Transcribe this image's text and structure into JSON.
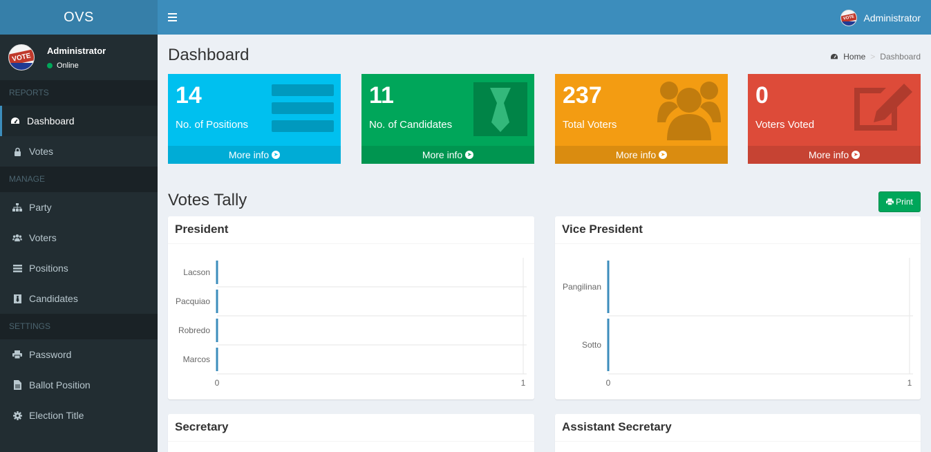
{
  "sidebar": {
    "brand": "OVS",
    "user": {
      "name": "Administrator",
      "status": "Online"
    },
    "sections": [
      {
        "header": "REPORTS",
        "items": [
          {
            "label": "Dashboard",
            "icon": "dashboard-icon",
            "active": true
          },
          {
            "label": "Votes",
            "icon": "lock-icon"
          }
        ]
      },
      {
        "header": "MANAGE",
        "items": [
          {
            "label": "Party",
            "icon": "sitemap-icon"
          },
          {
            "label": "Voters",
            "icon": "users-icon"
          },
          {
            "label": "Positions",
            "icon": "list-icon"
          },
          {
            "label": "Candidates",
            "icon": "candidate-icon"
          }
        ]
      },
      {
        "header": "SETTINGS",
        "items": [
          {
            "label": "Password",
            "icon": "print-icon"
          },
          {
            "label": "Ballot Position",
            "icon": "file-icon"
          },
          {
            "label": "Election Title",
            "icon": "gear-icon"
          }
        ]
      }
    ]
  },
  "topbar": {
    "user_name": "Administrator"
  },
  "page": {
    "title": "Dashboard",
    "breadcrumb": {
      "home": "Home",
      "current": "Dashboard"
    }
  },
  "stats": [
    {
      "value": "14",
      "label": "No. of Positions",
      "more": "More info",
      "color": "#00c0ef"
    },
    {
      "value": "11",
      "label": "No. of Candidates",
      "more": "More info",
      "color": "#00a65a"
    },
    {
      "value": "237",
      "label": "Total Voters",
      "more": "More info",
      "color": "#f39c12"
    },
    {
      "value": "0",
      "label": "Voters Voted",
      "more": "More info",
      "color": "#dd4b39"
    }
  ],
  "tally": {
    "title": "Votes Tally",
    "print_label": "Print",
    "panels": [
      {
        "title": "President"
      },
      {
        "title": "Vice President"
      },
      {
        "title": "Secretary"
      },
      {
        "title": "Assistant Secretary"
      }
    ]
  },
  "chart_data": [
    {
      "type": "bar",
      "orientation": "horizontal",
      "title": "President",
      "categories": [
        "Lacson",
        "Pacquiao",
        "Robredo",
        "Marcos"
      ],
      "values": [
        0,
        0,
        0,
        0
      ],
      "xlim": [
        0,
        1
      ],
      "xticks": [
        "0",
        "1"
      ],
      "color": "#3c8dbc",
      "grid": true
    },
    {
      "type": "bar",
      "orientation": "horizontal",
      "title": "Vice President",
      "categories": [
        "Pangilinan",
        "Sotto"
      ],
      "values": [
        0,
        0
      ],
      "xlim": [
        0,
        1
      ],
      "xticks": [
        "0",
        "1"
      ],
      "color": "#3c8dbc",
      "grid": true
    }
  ]
}
